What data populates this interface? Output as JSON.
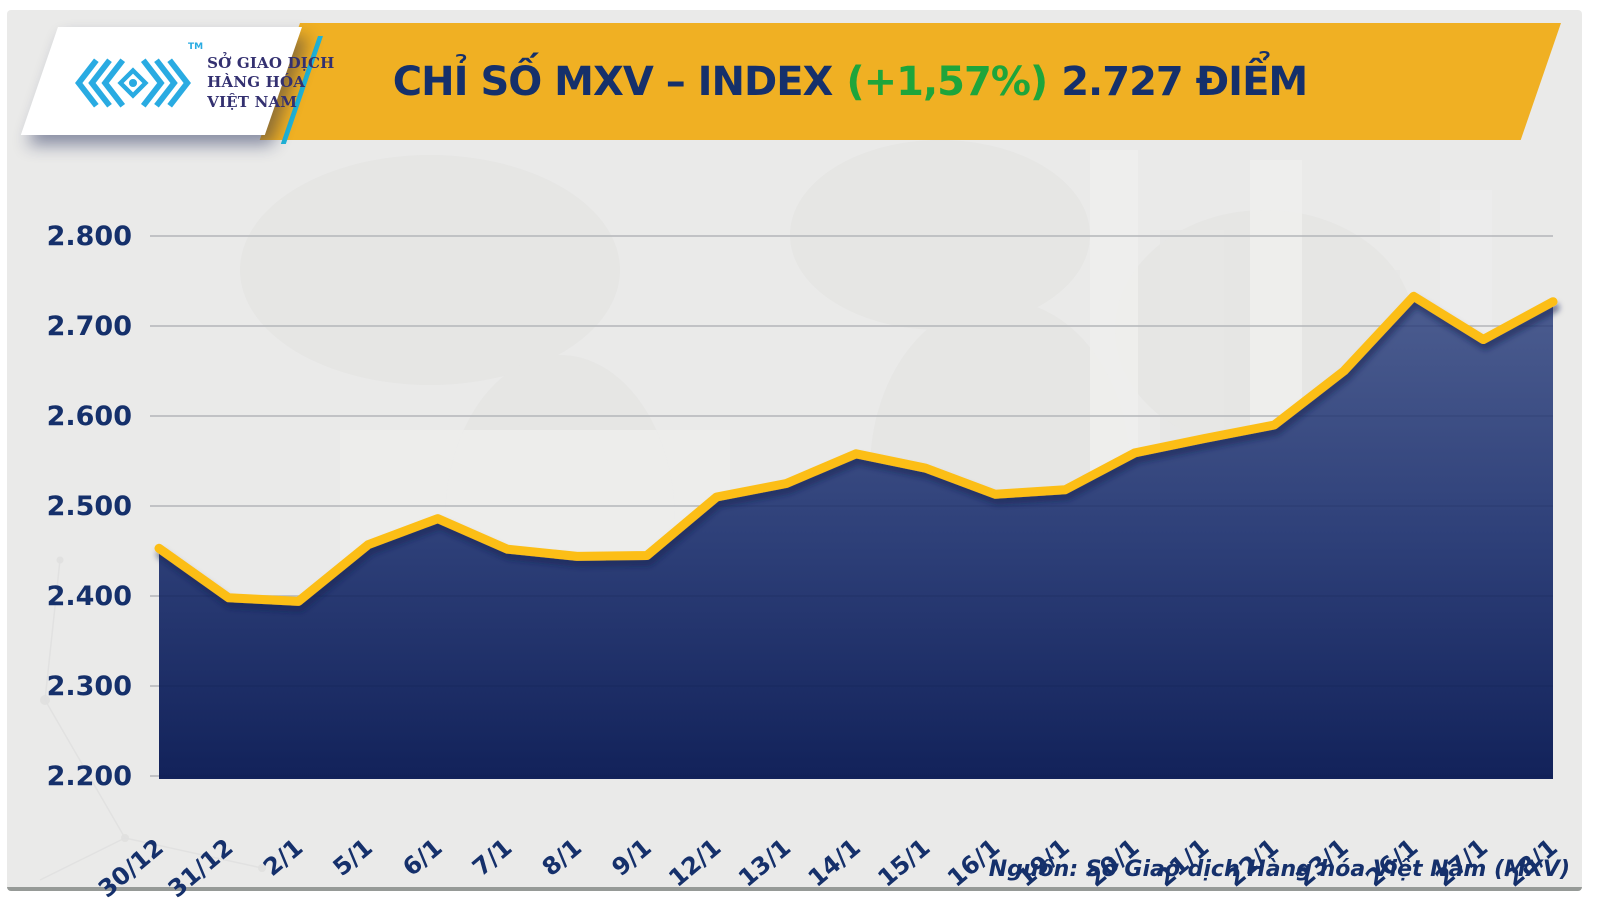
{
  "header": {
    "logo": {
      "line1": "SỞ GIAO DỊCH",
      "line2": "HÀNG HÓA",
      "line3": "VIỆT NAM",
      "tm": "TM"
    },
    "title_main": "CHỈ SỐ MXV – INDEX",
    "title_change": "(+1,57%)",
    "title_value": "2.727 ĐIỂM"
  },
  "chart_data": {
    "type": "area",
    "title": "CHỈ SỐ MXV – INDEX (+1,57%) 2.727 ĐIỂM",
    "categories": [
      "30/12",
      "31/12",
      "2/1",
      "5/1",
      "6/1",
      "7/1",
      "8/1",
      "9/1",
      "12/1",
      "13/1",
      "14/1",
      "15/1",
      "16/1",
      "19/1",
      "20/1",
      "21/1",
      "22/1",
      "23/1",
      "26/1",
      "27/1",
      "28/1"
    ],
    "values": [
      2453,
      2398,
      2394,
      2457,
      2486,
      2452,
      2444,
      2445,
      2510,
      2525,
      2558,
      2542,
      2513,
      2518,
      2559,
      2575,
      2590,
      2650,
      2733,
      2685,
      2727
    ],
    "xlabel": "",
    "ylabel": "",
    "ylim": [
      2200,
      2800
    ],
    "ytick_step": 100,
    "ytick_labels": [
      "2.200",
      "2.300",
      "2.400",
      "2.500",
      "2.600",
      "2.700",
      "2.800"
    ],
    "grid": "horizontal",
    "legend": "none",
    "last_value_label": "2.727",
    "change_percent_label": "+1,57%"
  },
  "footer": {
    "source": "Nguồn: Sở Giao dịch Hàng hóa Việt Nam (MXV)"
  },
  "colors": {
    "banner_yellow": "#F0B023",
    "line_yellow": "#FCBE14",
    "navy_text": "#15306B",
    "green_change": "#1EA53B",
    "area_top": "#4C5D90",
    "area_bottom": "#12225A",
    "panel_background": "#EAEAE9",
    "gridline": "#CDCDCC",
    "logo_cyan": "#29ABE2",
    "logo_navy": "#333070",
    "slash_cyan": "#1FB4D8"
  }
}
